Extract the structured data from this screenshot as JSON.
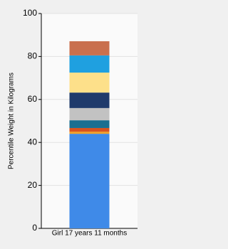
{
  "chart_data": {
    "type": "stacked-bar",
    "y_label": "Percentile Weight in Kilograms",
    "categories": [
      "Girl 17 years 11 months"
    ],
    "series": [
      {
        "color": "#3f8ae8",
        "values": [
          44
        ]
      },
      {
        "color": "#f0a028",
        "values": [
          1
        ]
      },
      {
        "color": "#d9531e",
        "values": [
          1.7
        ]
      },
      {
        "color": "#1b6f90",
        "values": [
          3.6
        ]
      },
      {
        "color": "#c2c2c2",
        "values": [
          5.7
        ]
      },
      {
        "color": "#1f3a6b",
        "values": [
          7.2
        ]
      },
      {
        "color": "#fde08a",
        "values": [
          9.3
        ]
      },
      {
        "color": "#1fa0e0",
        "values": [
          8
        ]
      },
      {
        "color": "#c9704e",
        "values": [
          6.6
        ]
      }
    ],
    "ylim": [
      0,
      100
    ],
    "yticks": [
      0,
      20,
      40,
      60,
      80,
      100
    ],
    "grid": true
  }
}
